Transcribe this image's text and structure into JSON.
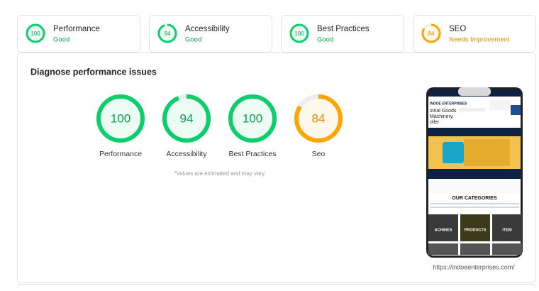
{
  "summary_cards": [
    {
      "score": 100,
      "label": "Performance",
      "status": "Good",
      "color": "#0cce6b",
      "text_color": "#0a9e50"
    },
    {
      "score": 94,
      "label": "Accessibility",
      "status": "Good",
      "color": "#0cce6b",
      "text_color": "#0a9e50"
    },
    {
      "score": 100,
      "label": "Best Practices",
      "status": "Good",
      "color": "#0cce6b",
      "text_color": "#0a9e50"
    },
    {
      "score": 84,
      "label": "SEO",
      "status": "Needs Improvement",
      "color": "#ffa400",
      "text_color": "#e68a00"
    }
  ],
  "panel": {
    "title": "Diagnose performance issues",
    "gauges": [
      {
        "score": 100,
        "label": "Performance",
        "color": "#0cce6b",
        "text_color": "#0a9e50"
      },
      {
        "score": 94,
        "label": "Accessibility",
        "color": "#0cce6b",
        "text_color": "#0a9e50"
      },
      {
        "score": 100,
        "label": "Best Practices",
        "color": "#0cce6b",
        "text_color": "#0a9e50"
      },
      {
        "score": 84,
        "label": "Seo",
        "color": "#ffa400",
        "text_color": "#e68a00"
      }
    ],
    "note": "*Values are estimated and may vary.",
    "preview": {
      "brand": "INDOE ENTERPRISES",
      "headline": [
        "strial Goods",
        "Machinery,",
        "oller"
      ],
      "section": "OUR CATEGORIES",
      "tiles": [
        "ACHINES",
        "PRODUCTS",
        "ITEM"
      ]
    },
    "preview_url": "https://indoeenterprises.com/"
  }
}
